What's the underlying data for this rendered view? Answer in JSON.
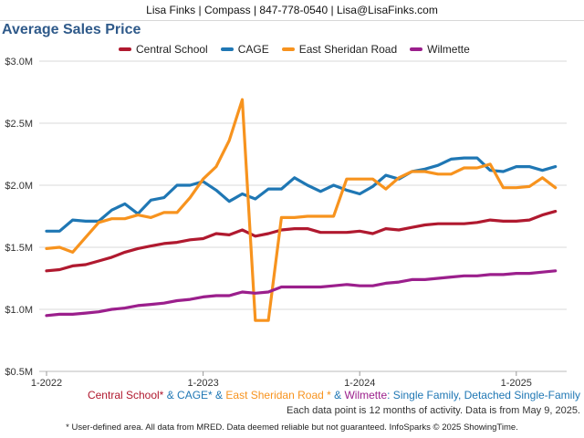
{
  "header": {
    "text": "Lisa Finks | Compass | 847-778-0540 | Lisa@LisaFinks.com"
  },
  "chart_data": {
    "type": "line",
    "title": "Average Sales Price",
    "xlabel": "",
    "ylabel": "",
    "ylim": [
      500000,
      3000000
    ],
    "y_ticks": [
      500000,
      1000000,
      1500000,
      2000000,
      2500000,
      3000000
    ],
    "y_tick_labels": [
      "$0.5M",
      "$1.0M",
      "$1.5M",
      "$2.0M",
      "$2.5M",
      "$3.0M"
    ],
    "x_ticks": [
      "2022-01",
      "2023-01",
      "2024-01",
      "2025-01"
    ],
    "x_tick_labels": [
      "1-2022",
      "1-2023",
      "1-2024",
      "1-2025"
    ],
    "x_range": [
      "2022-01",
      "2025-04"
    ],
    "grid": "horizontal",
    "legend_position": "top",
    "x": [
      "2022-01",
      "2022-02",
      "2022-03",
      "2022-04",
      "2022-05",
      "2022-06",
      "2022-07",
      "2022-08",
      "2022-09",
      "2022-10",
      "2022-11",
      "2022-12",
      "2023-01",
      "2023-02",
      "2023-03",
      "2023-04",
      "2023-05",
      "2023-06",
      "2023-07",
      "2023-08",
      "2023-09",
      "2023-10",
      "2023-11",
      "2023-12",
      "2024-01",
      "2024-02",
      "2024-03",
      "2024-04",
      "2024-05",
      "2024-06",
      "2024-07",
      "2024-08",
      "2024-09",
      "2024-10",
      "2024-11",
      "2024-12",
      "2025-01",
      "2025-02",
      "2025-03",
      "2025-04"
    ],
    "series": [
      {
        "name": "Central School",
        "color": "#b0192f",
        "values": [
          1310000,
          1320000,
          1350000,
          1360000,
          1390000,
          1420000,
          1460000,
          1490000,
          1510000,
          1530000,
          1540000,
          1560000,
          1570000,
          1610000,
          1600000,
          1640000,
          1590000,
          1610000,
          1640000,
          1650000,
          1650000,
          1620000,
          1620000,
          1620000,
          1630000,
          1610000,
          1650000,
          1640000,
          1660000,
          1680000,
          1690000,
          1690000,
          1690000,
          1700000,
          1720000,
          1710000,
          1710000,
          1720000,
          1760000,
          1790000
        ]
      },
      {
        "name": "CAGE",
        "color": "#1f77b4",
        "values": [
          1630000,
          1630000,
          1720000,
          1710000,
          1710000,
          1800000,
          1850000,
          1770000,
          1880000,
          1900000,
          2000000,
          2000000,
          2030000,
          1960000,
          1870000,
          1930000,
          1890000,
          1970000,
          1970000,
          2060000,
          2000000,
          1950000,
          2000000,
          1960000,
          1930000,
          1990000,
          2080000,
          2050000,
          2110000,
          2130000,
          2160000,
          2210000,
          2220000,
          2220000,
          2120000,
          2110000,
          2150000,
          2150000,
          2120000,
          2150000
        ]
      },
      {
        "name": "East Sheridan Road",
        "color": "#f7931e",
        "values": [
          1490000,
          1500000,
          1460000,
          1580000,
          1700000,
          1730000,
          1730000,
          1760000,
          1740000,
          1780000,
          1780000,
          1900000,
          2050000,
          2150000,
          2360000,
          2690000,
          910000,
          910000,
          1740000,
          1740000,
          1750000,
          1750000,
          1750000,
          2050000,
          2050000,
          2050000,
          1970000,
          2060000,
          2110000,
          2110000,
          2090000,
          2090000,
          2140000,
          2140000,
          2170000,
          1980000,
          1980000,
          1990000,
          2060000,
          1980000
        ]
      },
      {
        "name": "Wilmette",
        "color": "#9b1f8c",
        "values": [
          950000,
          960000,
          960000,
          970000,
          980000,
          1000000,
          1010000,
          1030000,
          1040000,
          1050000,
          1070000,
          1080000,
          1100000,
          1110000,
          1110000,
          1140000,
          1130000,
          1140000,
          1180000,
          1180000,
          1180000,
          1180000,
          1190000,
          1200000,
          1190000,
          1190000,
          1210000,
          1220000,
          1240000,
          1240000,
          1250000,
          1260000,
          1270000,
          1270000,
          1280000,
          1280000,
          1290000,
          1290000,
          1300000,
          1310000
        ]
      }
    ],
    "caption_parts": [
      {
        "text": "Central School*",
        "color": "#b0192f"
      },
      {
        "text": " & ",
        "color": "#1f77b4"
      },
      {
        "text": "CAGE*",
        "color": "#1f77b4"
      },
      {
        "text": " & ",
        "color": "#1f77b4"
      },
      {
        "text": "East Sheridan Road *",
        "color": "#f7931e"
      },
      {
        "text": " & ",
        "color": "#1f77b4"
      },
      {
        "text": "Wilmette",
        "color": "#9b1f8c"
      },
      {
        "text": ": Single Family, Detached Single-Family",
        "color": "#1f77b4"
      }
    ],
    "note": "Each data point is 12 months of activity. Data is from May 9, 2025."
  },
  "footer": {
    "text": "* User-defined area. All data from MRED. Data deemed reliable but not guaranteed. InfoSparks © 2025 ShowingTime."
  }
}
